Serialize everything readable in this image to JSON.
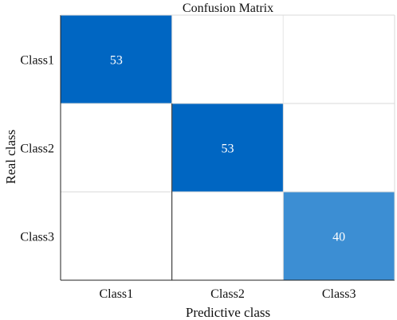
{
  "chart_data": {
    "type": "heatmap",
    "title": "Confusion Matrix",
    "xlabel": "Predictive class",
    "ylabel": "Real class",
    "x_categories": [
      "Class1",
      "Class2",
      "Class3"
    ],
    "y_categories": [
      "Class1",
      "Class2",
      "Class3"
    ],
    "values": [
      [
        53,
        0,
        0
      ],
      [
        0,
        53,
        0
      ],
      [
        0,
        0,
        40
      ]
    ],
    "show_zero_values": false,
    "colors": {
      "high": "#0066C2",
      "mid": "#3D8FD3",
      "low": "#FFFFFF",
      "grid": "#D9D9D9",
      "frame": "#222222"
    }
  }
}
